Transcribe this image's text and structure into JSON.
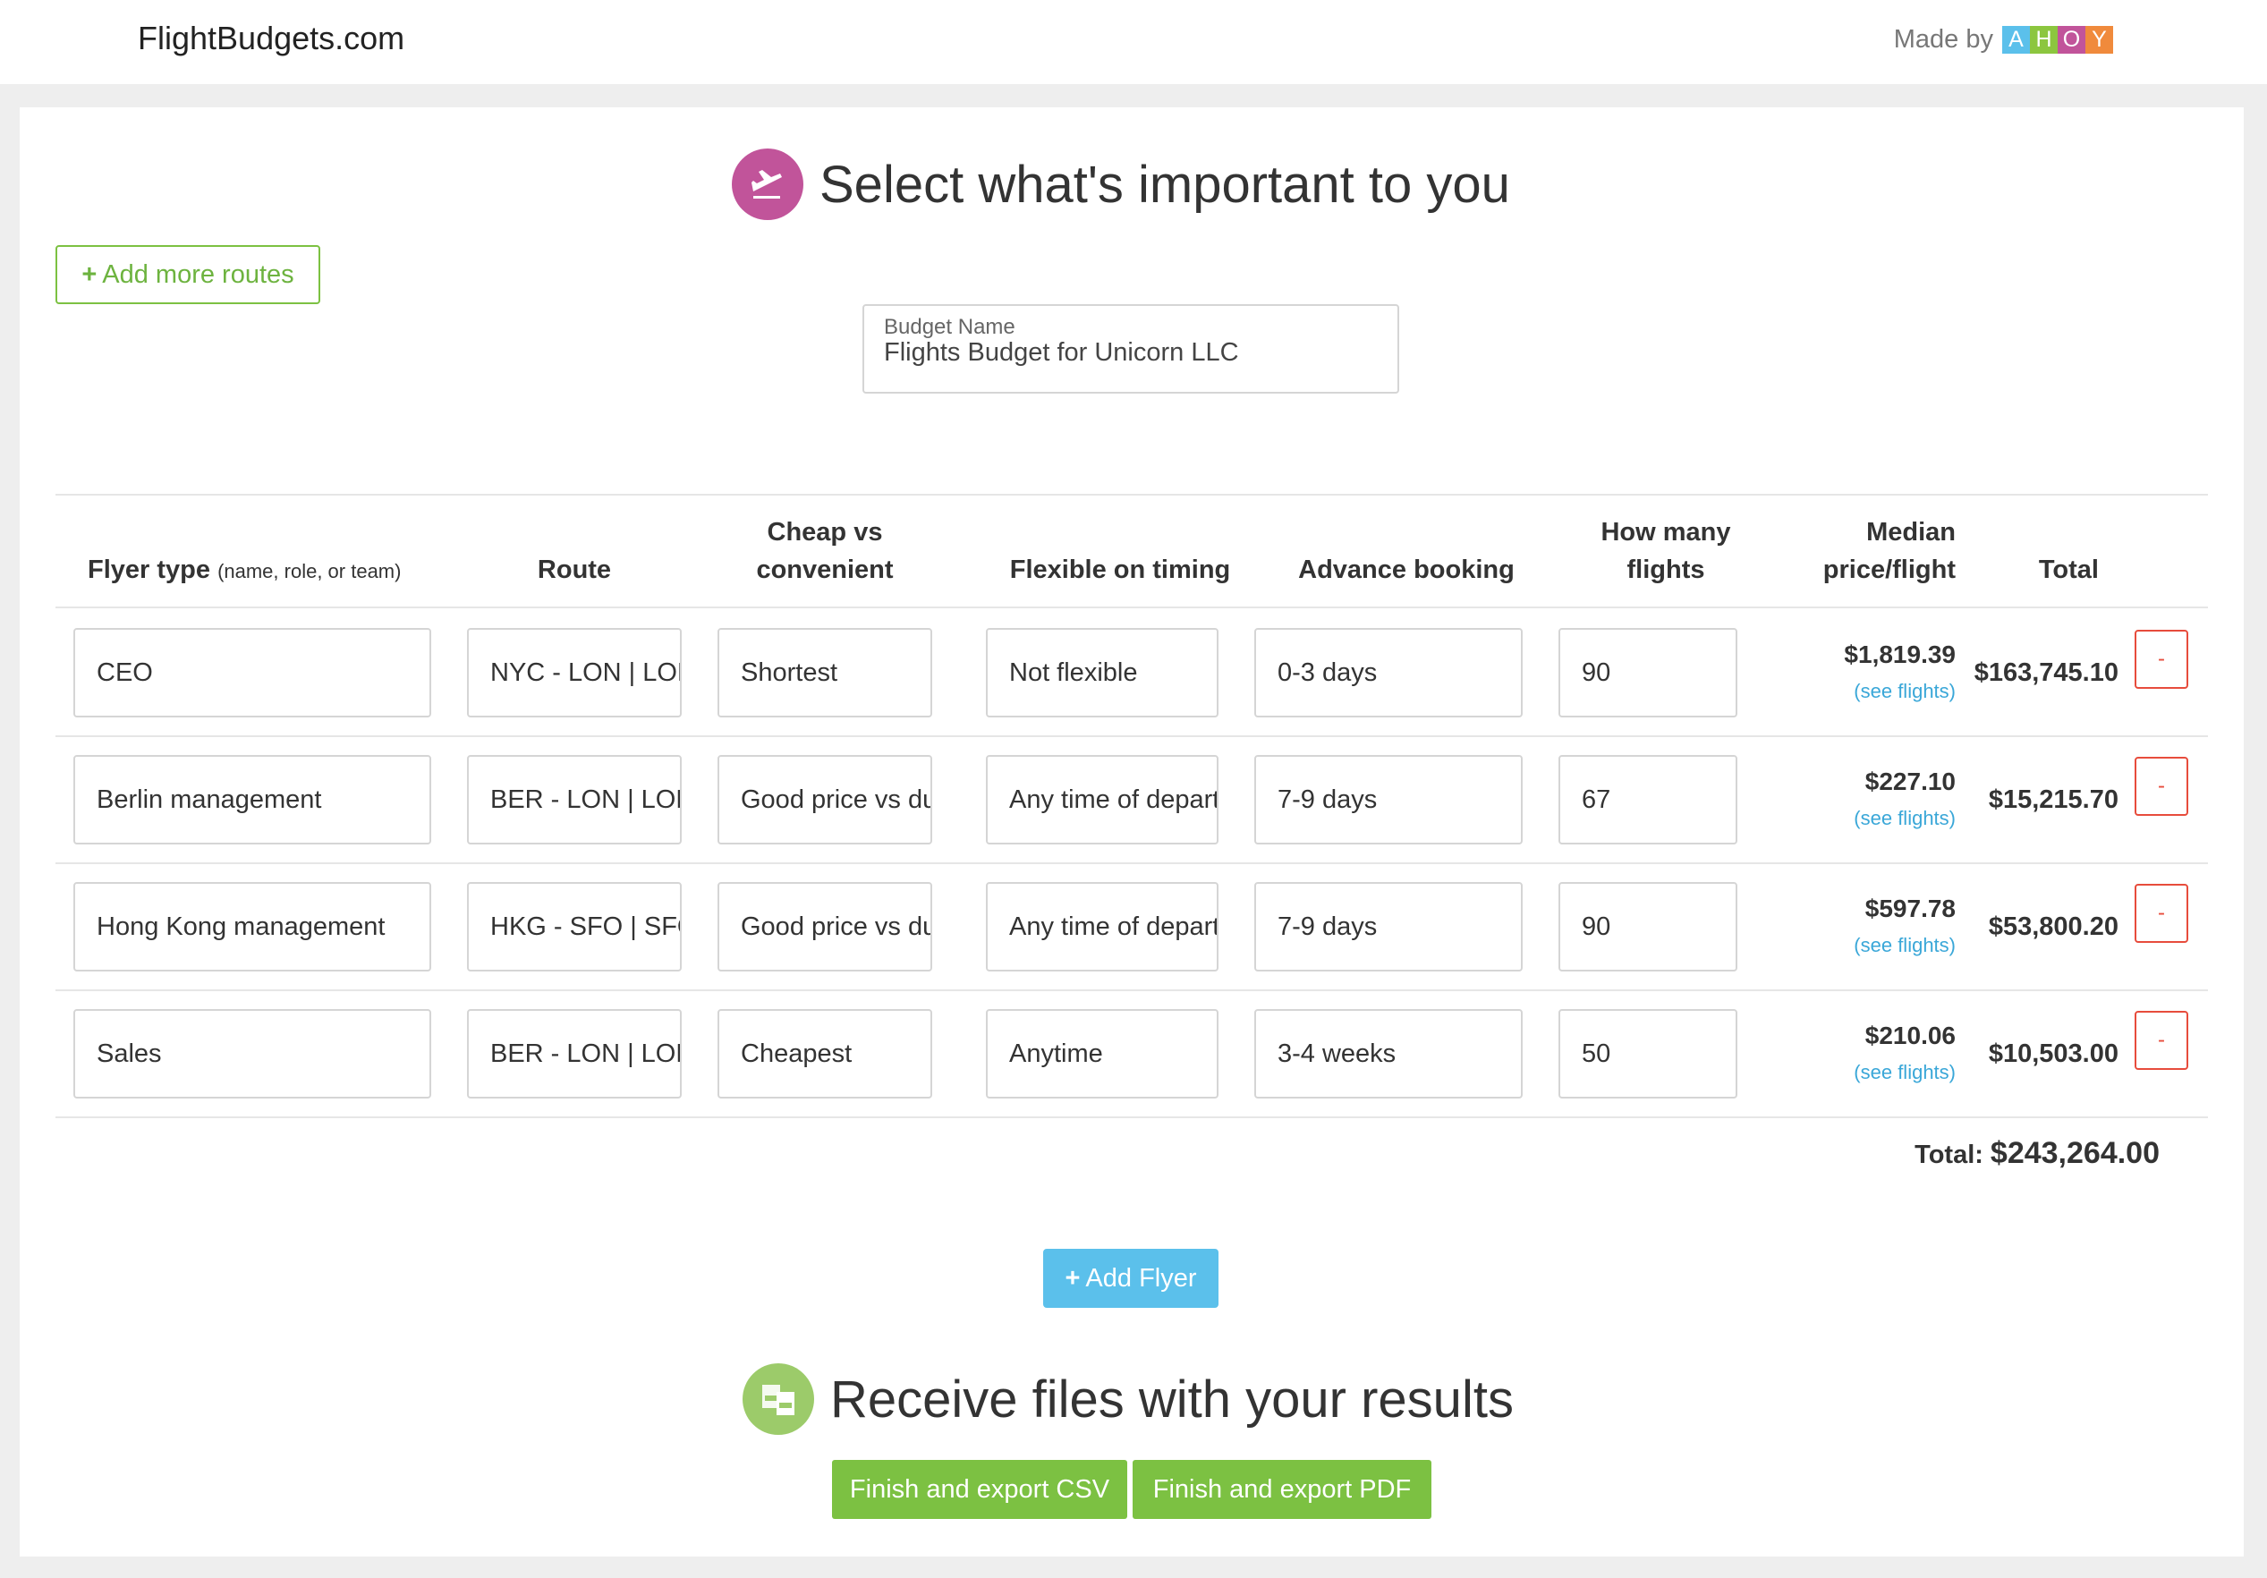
{
  "header": {
    "brand": "FlightBudgets.com",
    "made_by_label": "Made by",
    "ahoy_letters": [
      "A",
      "H",
      "O",
      "Y"
    ]
  },
  "section1": {
    "title": "Select what's important to you",
    "icon": "plane-departure-icon"
  },
  "add_routes_label": "Add more routes",
  "budget": {
    "label": "Budget Name",
    "value": "Flights Budget for Unicorn LLC"
  },
  "columns": {
    "flyer_type": "Flyer type",
    "flyer_type_hint": "(name, role, or team)",
    "route": "Route",
    "cheap_line1": "Cheap vs",
    "cheap_line2": "convenient",
    "flexible": "Flexible on timing",
    "advance": "Advance booking",
    "how_many_line1": "How many",
    "how_many_line2": "flights",
    "median_line1": "Median",
    "median_line2": "price/flight",
    "total": "Total"
  },
  "rows": [
    {
      "flyer": "CEO",
      "route": "NYC - LON | LON - NYC",
      "cheap": "Shortest",
      "flexible": "Not flexible",
      "advance": "0-3 days",
      "flights": "90",
      "median": "$1,819.39",
      "see": "(see flights)",
      "total": "$163,745.10",
      "remove": "-"
    },
    {
      "flyer": "Berlin management",
      "route": "BER - LON | LON - BER",
      "cheap": "Good price vs duration",
      "flexible": "Any time of departure",
      "advance": "7-9 days",
      "flights": "67",
      "median": "$227.10",
      "see": "(see flights)",
      "total": "$15,215.70",
      "remove": "-"
    },
    {
      "flyer": "Hong Kong management",
      "route": "HKG - SFO | SFO - HKG",
      "cheap": "Good price vs duration",
      "flexible": "Any time of departure",
      "advance": "7-9 days",
      "flights": "90",
      "median": "$597.78",
      "see": "(see flights)",
      "total": "$53,800.20",
      "remove": "-"
    },
    {
      "flyer": "Sales",
      "route": "BER - LON | LON - BER",
      "cheap": "Cheapest",
      "flexible": "Anytime",
      "advance": "3-4 weeks",
      "flights": "50",
      "median": "$210.06",
      "see": "(see flights)",
      "total": "$10,503.00",
      "remove": "-"
    }
  ],
  "grand_total": {
    "label": "Total:",
    "value": "$243,264.00"
  },
  "add_flyer_label": "Add Flyer",
  "section2": {
    "title": "Receive files with your results",
    "icon": "pdf-csv-files-icon"
  },
  "export": {
    "csv_label": "Finish and export CSV",
    "pdf_label": "Finish and export PDF"
  },
  "colors": {
    "accent_green": "#7cc142",
    "accent_blue": "#5bc0eb",
    "remove_red": "#e74c3c",
    "section1_icon": "#c1549a",
    "section2_icon": "#9ccb6a",
    "link_blue": "#3aa7d8",
    "ahoy": [
      "#5bc0eb",
      "#8cc63f",
      "#c1549a",
      "#f08a3c"
    ]
  }
}
